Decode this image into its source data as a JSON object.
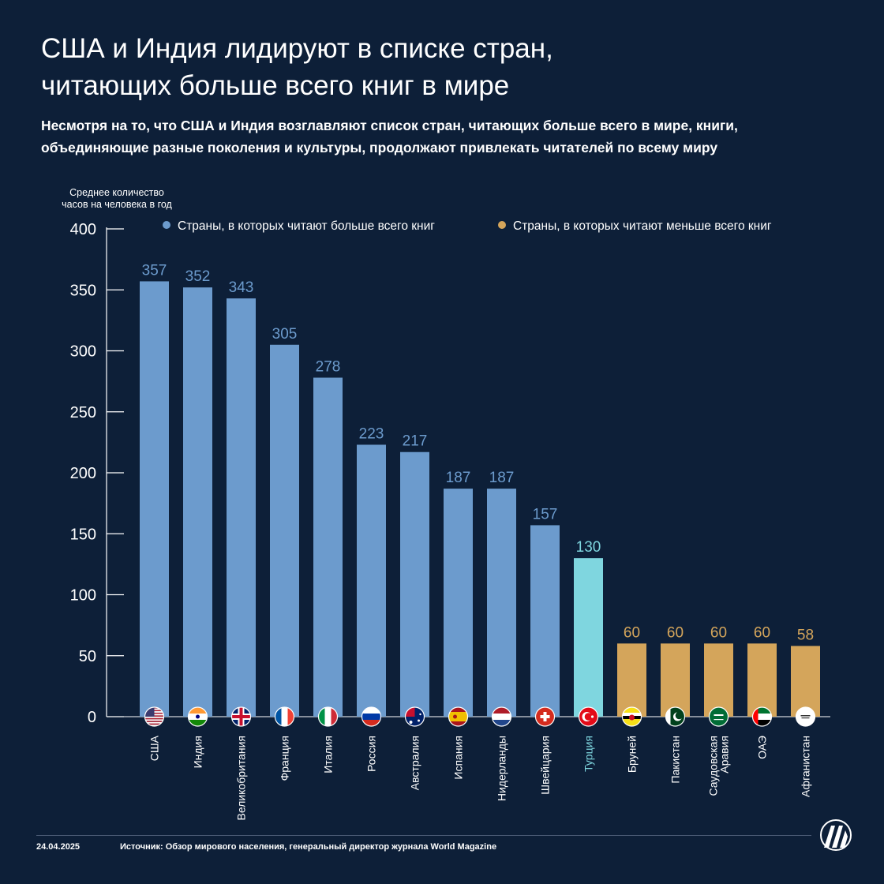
{
  "title": "США и Индия лидируют в списке стран,\nчитающих больше всего книг в мире",
  "subtitle": "Несмотря на то, что США и Индия возглавляют список стран, читающих больше всего в мире, книги,\nобъединяющие разные поколения и культуры, продолжают привлекать читателей по всему миру",
  "legend": {
    "most": "Страны, в которых читают больше всего книг",
    "least": "Страны, в которых читают меньше всего книг"
  },
  "footer": {
    "date": "24.04.2025",
    "source": "Источник: Обзор мирового населения, генеральный директор журнала World Magazine"
  },
  "colors": {
    "background": "#0d1f38",
    "most": "#6c9bcd",
    "least": "#d4a55b",
    "highlight": "#7fd6df",
    "axis": "#ffffff"
  },
  "chart_data": {
    "type": "bar",
    "ylabel_lines": [
      "Среднее количество",
      "часов на человека в год"
    ],
    "ylim": [
      0,
      400
    ],
    "yticks": [
      0,
      50,
      100,
      150,
      200,
      250,
      300,
      350,
      400
    ],
    "categories": [
      {
        "label": "США",
        "value": 357,
        "group": "most",
        "flag": "us-flag-icon"
      },
      {
        "label": "Индия",
        "value": 352,
        "group": "most",
        "flag": "india-flag-icon"
      },
      {
        "label": "Великобритания",
        "value": 343,
        "group": "most",
        "flag": "uk-flag-icon"
      },
      {
        "label": "Франция",
        "value": 305,
        "group": "most",
        "flag": "france-flag-icon"
      },
      {
        "label": "Италия",
        "value": 278,
        "group": "most",
        "flag": "italy-flag-icon"
      },
      {
        "label": "Россия",
        "value": 223,
        "group": "most",
        "flag": "russia-flag-icon"
      },
      {
        "label": "Австралия",
        "value": 217,
        "group": "most",
        "flag": "australia-flag-icon"
      },
      {
        "label": "Испания",
        "value": 187,
        "group": "most",
        "flag": "spain-flag-icon"
      },
      {
        "label": "Нидерланды",
        "value": 187,
        "group": "most",
        "flag": "netherlands-flag-icon"
      },
      {
        "label": "Швейцария",
        "value": 157,
        "group": "most",
        "flag": "switzerland-flag-icon"
      },
      {
        "label": "Турция",
        "value": 130,
        "group": "highlight",
        "flag": "turkey-flag-icon"
      },
      {
        "label": "Бруней",
        "value": 60,
        "group": "least",
        "flag": "brunei-flag-icon"
      },
      {
        "label": "Пакистан",
        "value": 60,
        "group": "least",
        "flag": "pakistan-flag-icon"
      },
      {
        "label": "Саудовская Аравия",
        "value": 60,
        "group": "least",
        "flag": "saudi-arabia-flag-icon"
      },
      {
        "label": "ОАЭ",
        "value": 60,
        "group": "least",
        "flag": "uae-flag-icon"
      },
      {
        "label": "Афганистан",
        "value": 58,
        "group": "least",
        "flag": "afghanistan-flag-icon"
      }
    ]
  }
}
